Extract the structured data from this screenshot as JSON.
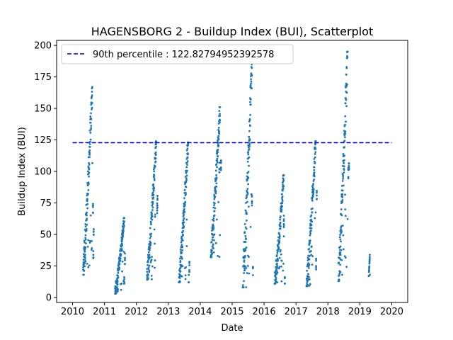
{
  "chart_data": {
    "type": "scatter",
    "title": "HAGENSBORG 2 - Buildup Index (BUI), Scatterplot",
    "xlabel": "Date",
    "ylabel": "Buildup Index (BUI)",
    "xlim": [
      2009.5,
      2020.5
    ],
    "ylim": [
      -4,
      204
    ],
    "x_ticks": [
      "2010",
      "2011",
      "2012",
      "2013",
      "2014",
      "2015",
      "2016",
      "2017",
      "2018",
      "2019",
      "2020"
    ],
    "y_ticks": [
      "0",
      "25",
      "50",
      "75",
      "100",
      "125",
      "150",
      "175",
      "200"
    ],
    "grid": false,
    "legend_position": "upper-left",
    "reference_line": {
      "label": "90th percentile : 122.82794952392578",
      "y": 122.82794952392578,
      "x_range": [
        2010.0,
        2020.0
      ],
      "color": "#0000cc",
      "style": "dashed"
    },
    "series": [
      {
        "color": "#1f77b4",
        "seasons": [
          {
            "start": 2010.33,
            "end": 2010.66,
            "min": 18,
            "peak": 167,
            "end_val": 52,
            "tail": [
              [
                2010.64,
                70
              ],
              [
                2010.65,
                32
              ],
              [
                2010.66,
                52
              ]
            ]
          },
          {
            "start": 2011.33,
            "end": 2011.66,
            "min": 3,
            "peak": 63,
            "end_val": 25,
            "tail": [
              [
                2011.55,
                40
              ],
              [
                2011.62,
                12
              ],
              [
                2011.64,
                30
              ]
            ]
          },
          {
            "start": 2012.33,
            "end": 2012.66,
            "min": 14,
            "peak": 124,
            "end_val": 72,
            "tail": [
              [
                2012.65,
                70
              ],
              [
                2012.66,
                76
              ]
            ]
          },
          {
            "start": 2013.33,
            "end": 2013.66,
            "min": 12,
            "peak": 123,
            "end_val": 20,
            "tail": [
              [
                2013.64,
                15
              ],
              [
                2013.66,
                25
              ]
            ]
          },
          {
            "start": 2014.33,
            "end": 2014.66,
            "min": 32,
            "peak": 151,
            "end_val": 100,
            "tail": [
              [
                2014.6,
                103
              ],
              [
                2014.65,
                105
              ]
            ]
          },
          {
            "start": 2015.33,
            "end": 2015.66,
            "min": 8,
            "peak": 185,
            "end_val": 40,
            "tail": [
              [
                2015.62,
                77
              ],
              [
                2015.65,
                20
              ]
            ]
          },
          {
            "start": 2016.33,
            "end": 2016.66,
            "min": 11,
            "peak": 97,
            "end_val": 30,
            "tail": [
              [
                2016.62,
                60
              ],
              [
                2016.65,
                12
              ]
            ]
          },
          {
            "start": 2017.33,
            "end": 2017.66,
            "min": 9,
            "peak": 124,
            "end_val": 60,
            "tail": [
              [
                2017.63,
                26
              ],
              [
                2017.65,
                82
              ]
            ]
          },
          {
            "start": 2018.33,
            "end": 2018.66,
            "min": 13,
            "peak": 195,
            "end_val": 100,
            "tail": [
              [
                2018.64,
                98
              ],
              [
                2018.66,
                103
              ]
            ]
          },
          {
            "start": 2019.28,
            "end": 2019.32,
            "min": 17,
            "peak": 34,
            "end_val": 22,
            "tail": []
          }
        ]
      }
    ]
  }
}
